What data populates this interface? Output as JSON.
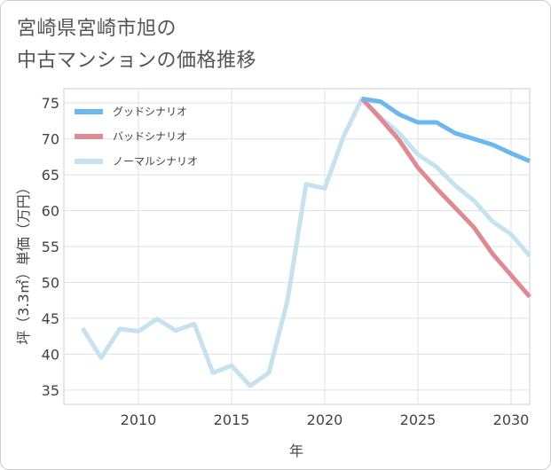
{
  "title_lines": [
    "宮崎県宮崎市旭の",
    "中古マンションの価格推移"
  ],
  "chart_data": {
    "type": "line",
    "xlabel": "年",
    "ylabel": "坪（3.3㎡）単価（万円）",
    "xlim": [
      2006,
      2031
    ],
    "ylim": [
      33,
      77
    ],
    "xticks": [
      2010,
      2015,
      2020,
      2025,
      2030
    ],
    "yticks": [
      35,
      40,
      45,
      50,
      55,
      60,
      65,
      70,
      75
    ],
    "legend_position": "top-left",
    "series": [
      {
        "name": "グッドシナリオ",
        "color": "#6cb8ee",
        "x": [
          2022,
          2023,
          2024,
          2025,
          2026,
          2027,
          2028,
          2029,
          2030,
          2031
        ],
        "values": [
          75.6,
          75.2,
          73.4,
          72.3,
          72.3,
          70.8,
          70.0,
          69.2,
          68.0,
          66.9
        ]
      },
      {
        "name": "バッドシナリオ",
        "color": "#df8a92",
        "x": [
          2022,
          2023,
          2024,
          2025,
          2026,
          2027,
          2028,
          2029,
          2030,
          2031
        ],
        "values": [
          75.6,
          72.8,
          69.8,
          66.0,
          63.1,
          60.4,
          57.7,
          54.0,
          51.0,
          48.0
        ]
      },
      {
        "name": "ノーマルシナリオ",
        "color": "#c5e2ee",
        "x": [
          2007,
          2008,
          2009,
          2010,
          2011,
          2012,
          2013,
          2014,
          2015,
          2016,
          2017,
          2018,
          2019,
          2020,
          2021,
          2022,
          2023,
          2024,
          2025,
          2026,
          2027,
          2028,
          2029,
          2030,
          2031
        ],
        "values": [
          43.6,
          39.5,
          43.5,
          43.2,
          44.9,
          43.3,
          44.2,
          37.4,
          38.4,
          35.6,
          37.4,
          47.5,
          63.7,
          63.1,
          70.3,
          75.6,
          73.0,
          70.8,
          67.8,
          66.1,
          63.5,
          61.4,
          58.5,
          56.7,
          53.7
        ]
      }
    ]
  }
}
